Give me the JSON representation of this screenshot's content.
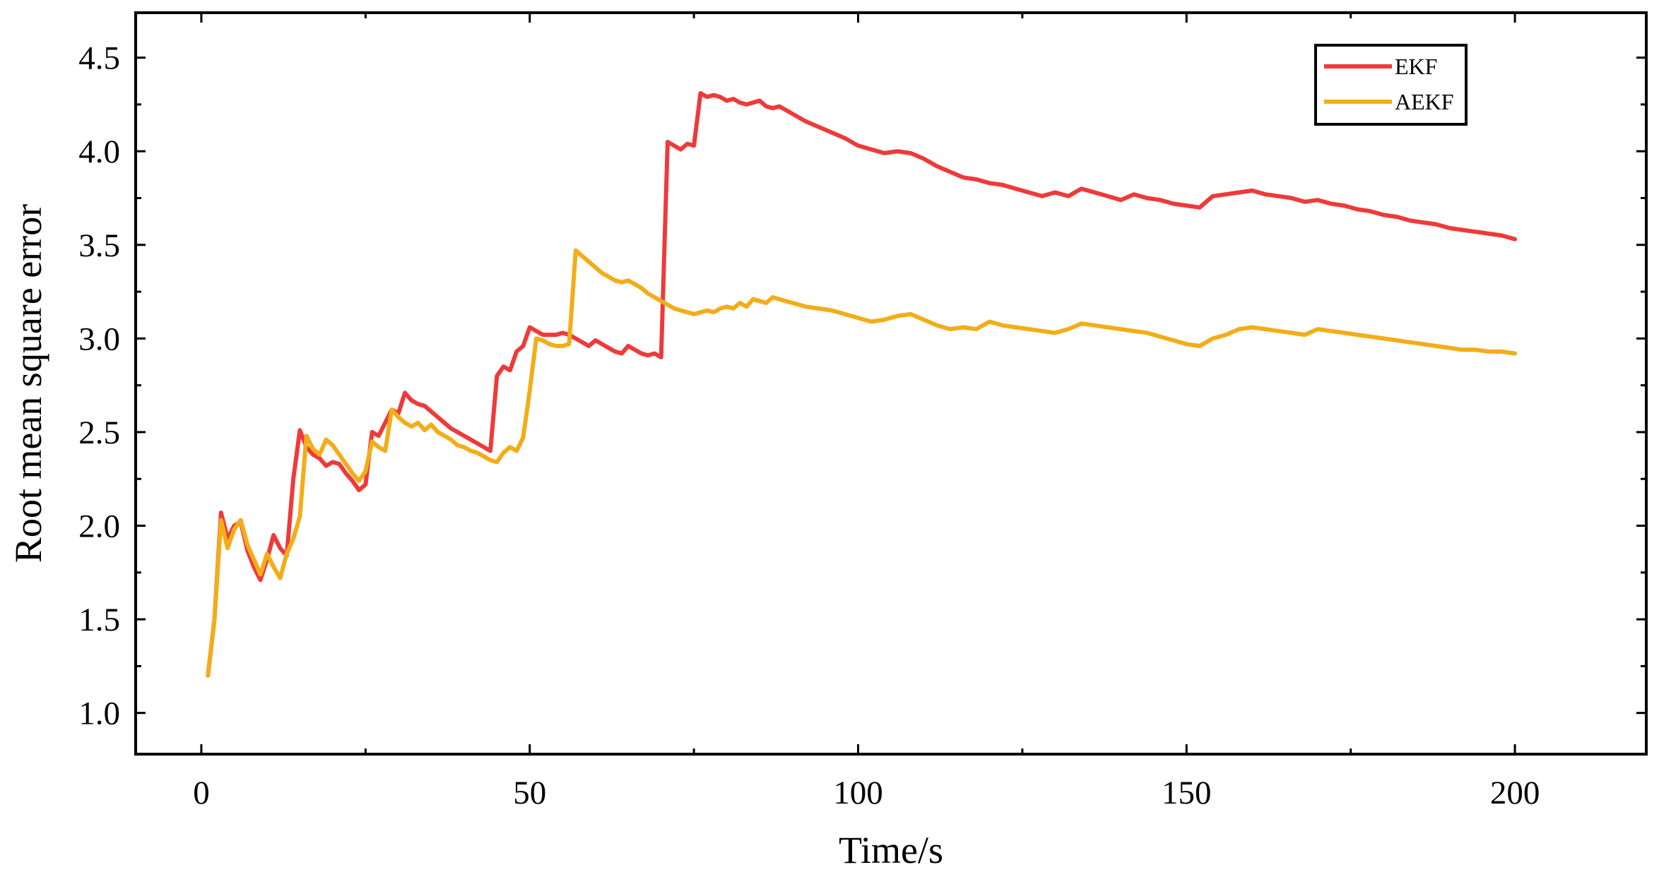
{
  "chart_data": {
    "type": "line",
    "xlabel": "Time/s",
    "ylabel": "Root mean square error",
    "xlim": [
      -10,
      220
    ],
    "ylim": [
      0.78,
      4.74
    ],
    "x_major_ticks": [
      0,
      50,
      100,
      150,
      200
    ],
    "x_tick_labels": [
      "0",
      "50",
      "100",
      "150",
      "200"
    ],
    "x_minor_ticks": [
      25,
      75,
      125,
      175
    ],
    "y_major_ticks": [
      1.0,
      1.5,
      2.0,
      2.5,
      3.0,
      3.5,
      4.0,
      4.5
    ],
    "y_tick_labels": [
      "1.0",
      "1.5",
      "2.0",
      "2.5",
      "3.0",
      "3.5",
      "4.0",
      "4.5"
    ],
    "y_minor_ticks": [
      1.25,
      1.75,
      2.25,
      2.75,
      3.25,
      3.75,
      4.25
    ],
    "grid": false,
    "legend_position": "top-right",
    "series": [
      {
        "name": "EKF",
        "color": "#ee3a3a",
        "x": [
          1,
          2,
          3,
          4,
          5,
          6,
          7,
          8,
          9,
          10,
          11,
          12,
          13,
          14,
          15,
          16,
          17,
          18,
          19,
          20,
          21,
          22,
          23,
          24,
          25,
          26,
          27,
          28,
          29,
          30,
          31,
          32,
          33,
          34,
          35,
          36,
          37,
          38,
          39,
          40,
          41,
          42,
          43,
          44,
          45,
          46,
          47,
          48,
          49,
          50,
          51,
          52,
          53,
          54,
          55,
          56,
          57,
          58,
          59,
          60,
          61,
          62,
          63,
          64,
          65,
          66,
          67,
          68,
          69,
          70,
          71,
          72,
          73,
          74,
          75,
          76,
          77,
          78,
          79,
          80,
          81,
          82,
          83,
          84,
          85,
          86,
          87,
          88,
          90,
          92,
          94,
          96,
          98,
          100,
          102,
          104,
          106,
          108,
          110,
          112,
          114,
          116,
          118,
          120,
          122,
          124,
          126,
          128,
          130,
          132,
          134,
          136,
          138,
          140,
          142,
          144,
          146,
          148,
          150,
          152,
          154,
          156,
          158,
          160,
          162,
          164,
          166,
          168,
          170,
          172,
          174,
          176,
          178,
          180,
          182,
          184,
          186,
          188,
          190,
          192,
          194,
          196,
          198,
          200
        ],
        "y": [
          1.2,
          1.5,
          2.07,
          1.93,
          2.0,
          2.02,
          1.87,
          1.78,
          1.71,
          1.82,
          1.95,
          1.88,
          1.84,
          2.25,
          2.51,
          2.42,
          2.38,
          2.36,
          2.32,
          2.34,
          2.33,
          2.28,
          2.24,
          2.19,
          2.22,
          2.5,
          2.48,
          2.55,
          2.62,
          2.6,
          2.71,
          2.67,
          2.65,
          2.64,
          2.61,
          2.58,
          2.55,
          2.52,
          2.5,
          2.48,
          2.46,
          2.44,
          2.42,
          2.4,
          2.8,
          2.85,
          2.83,
          2.93,
          2.96,
          3.06,
          3.04,
          3.02,
          3.02,
          3.02,
          3.03,
          3.02,
          3.0,
          2.98,
          2.96,
          2.99,
          2.97,
          2.95,
          2.93,
          2.92,
          2.96,
          2.94,
          2.92,
          2.91,
          2.92,
          2.9,
          4.05,
          4.03,
          4.01,
          4.04,
          4.03,
          4.31,
          4.29,
          4.3,
          4.29,
          4.27,
          4.28,
          4.26,
          4.25,
          4.26,
          4.27,
          4.24,
          4.23,
          4.24,
          4.2,
          4.16,
          4.13,
          4.1,
          4.07,
          4.03,
          4.01,
          3.99,
          4.0,
          3.99,
          3.96,
          3.92,
          3.89,
          3.86,
          3.85,
          3.83,
          3.82,
          3.8,
          3.78,
          3.76,
          3.78,
          3.76,
          3.8,
          3.78,
          3.76,
          3.74,
          3.77,
          3.75,
          3.74,
          3.72,
          3.71,
          3.7,
          3.76,
          3.77,
          3.78,
          3.79,
          3.77,
          3.76,
          3.75,
          3.73,
          3.74,
          3.72,
          3.71,
          3.69,
          3.68,
          3.66,
          3.65,
          3.63,
          3.62,
          3.61,
          3.59,
          3.58,
          3.57,
          3.56,
          3.55,
          3.53
        ]
      },
      {
        "name": "AEKF",
        "color": "#f2ad18",
        "x": [
          1,
          2,
          3,
          4,
          5,
          6,
          7,
          8,
          9,
          10,
          11,
          12,
          13,
          14,
          15,
          16,
          17,
          18,
          19,
          20,
          21,
          22,
          23,
          24,
          25,
          26,
          27,
          28,
          29,
          30,
          31,
          32,
          33,
          34,
          35,
          36,
          37,
          38,
          39,
          40,
          41,
          42,
          43,
          44,
          45,
          46,
          47,
          48,
          49,
          50,
          51,
          52,
          53,
          54,
          55,
          56,
          57,
          58,
          59,
          60,
          61,
          62,
          63,
          64,
          65,
          66,
          67,
          68,
          69,
          70,
          71,
          72,
          73,
          74,
          75,
          76,
          77,
          78,
          79,
          80,
          81,
          82,
          83,
          84,
          85,
          86,
          87,
          88,
          90,
          92,
          94,
          96,
          98,
          100,
          102,
          104,
          106,
          108,
          110,
          112,
          114,
          116,
          118,
          120,
          122,
          124,
          126,
          128,
          130,
          132,
          134,
          136,
          138,
          140,
          142,
          144,
          146,
          148,
          150,
          152,
          154,
          156,
          158,
          160,
          162,
          164,
          166,
          168,
          170,
          172,
          174,
          176,
          178,
          180,
          182,
          184,
          186,
          188,
          190,
          192,
          194,
          196,
          198,
          200
        ],
        "y": [
          1.2,
          1.5,
          2.03,
          1.88,
          1.98,
          2.03,
          1.9,
          1.82,
          1.74,
          1.85,
          1.78,
          1.72,
          1.85,
          1.93,
          2.05,
          2.48,
          2.41,
          2.38,
          2.46,
          2.43,
          2.38,
          2.33,
          2.28,
          2.24,
          2.29,
          2.45,
          2.42,
          2.4,
          2.62,
          2.58,
          2.55,
          2.53,
          2.55,
          2.51,
          2.54,
          2.5,
          2.48,
          2.46,
          2.43,
          2.42,
          2.4,
          2.39,
          2.37,
          2.35,
          2.34,
          2.39,
          2.42,
          2.4,
          2.47,
          2.72,
          3.0,
          2.99,
          2.97,
          2.96,
          2.96,
          2.97,
          3.47,
          3.44,
          3.41,
          3.38,
          3.35,
          3.33,
          3.31,
          3.3,
          3.31,
          3.29,
          3.27,
          3.24,
          3.22,
          3.2,
          3.18,
          3.16,
          3.15,
          3.14,
          3.13,
          3.14,
          3.15,
          3.14,
          3.16,
          3.17,
          3.16,
          3.19,
          3.17,
          3.21,
          3.2,
          3.19,
          3.22,
          3.21,
          3.19,
          3.17,
          3.16,
          3.15,
          3.13,
          3.11,
          3.09,
          3.1,
          3.12,
          3.13,
          3.1,
          3.07,
          3.05,
          3.06,
          3.05,
          3.09,
          3.07,
          3.06,
          3.05,
          3.04,
          3.03,
          3.05,
          3.08,
          3.07,
          3.06,
          3.05,
          3.04,
          3.03,
          3.01,
          2.99,
          2.97,
          2.96,
          3.0,
          3.02,
          3.05,
          3.06,
          3.05,
          3.04,
          3.03,
          3.02,
          3.05,
          3.04,
          3.03,
          3.02,
          3.01,
          3.0,
          2.99,
          2.98,
          2.97,
          2.96,
          2.95,
          2.94,
          2.94,
          2.93,
          2.93,
          2.92
        ]
      }
    ]
  }
}
